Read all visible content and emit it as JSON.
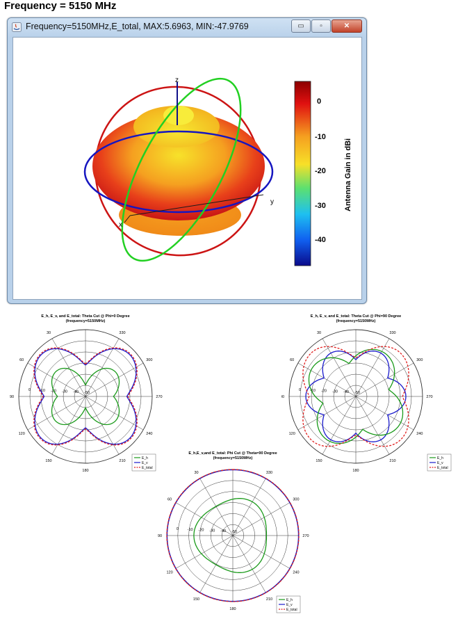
{
  "heading": "Frequency = 5150 MHz",
  "window": {
    "title": "Frequency=5150MHz,E_total, MAX:5.6963, MIN:-47.9769",
    "min_btn": "▭",
    "max_btn": "▫",
    "close_btn": "✕",
    "axes": {
      "z": "z",
      "y": "y",
      "x": "x"
    },
    "colorbar": {
      "label": "Antenna Gain in dBi",
      "ticks": [
        "0",
        "-10",
        "-20",
        "-30",
        "-40"
      ]
    }
  },
  "polar1": {
    "title": "E_h, E_v, and E_total: Theta Cut @ Phi=0 Degree",
    "subtitle": "(frequency=5150MHz)",
    "angle_labels": [
      "30",
      "330",
      "60",
      "300",
      "90",
      "270",
      "120",
      "240",
      "150",
      "210",
      "180"
    ],
    "radial_labels": [
      "0",
      "-10",
      "-20",
      "-30",
      "-40",
      "-50"
    ],
    "legend": [
      "E_h",
      "E_v",
      "E_total"
    ]
  },
  "polar2": {
    "title": "E_h, E_v, and E_total: Theta Cut @ Phi=90 Degree",
    "subtitle": "(frequency=5150MHz)",
    "angle_labels": [
      "30",
      "330",
      "60",
      "300",
      "90",
      "270",
      "120",
      "240",
      "150",
      "210",
      "180"
    ],
    "radial_labels": [
      "0",
      "-10",
      "-20",
      "-30",
      "-40",
      "-50"
    ],
    "legend": [
      "E_h",
      "E_v",
      "E_total"
    ]
  },
  "polar3": {
    "title": "E_h,E_v,and E_total: Phi Cut @ Theta=90 Degree",
    "subtitle": "(frequency=5150MHz)",
    "angle_labels": [
      "30",
      "330",
      "60",
      "300",
      "90",
      "270",
      "120",
      "240",
      "150",
      "210",
      "180"
    ],
    "radial_labels": [
      "0",
      "-10",
      "-20",
      "-30",
      "-40",
      "-50"
    ],
    "legend": [
      "E_h",
      "E_v",
      "E_total"
    ]
  },
  "colors": {
    "e_h": "#1a9a1a",
    "e_v": "#1a1acc",
    "e_total": "#e02020",
    "grid": "#333333"
  }
}
